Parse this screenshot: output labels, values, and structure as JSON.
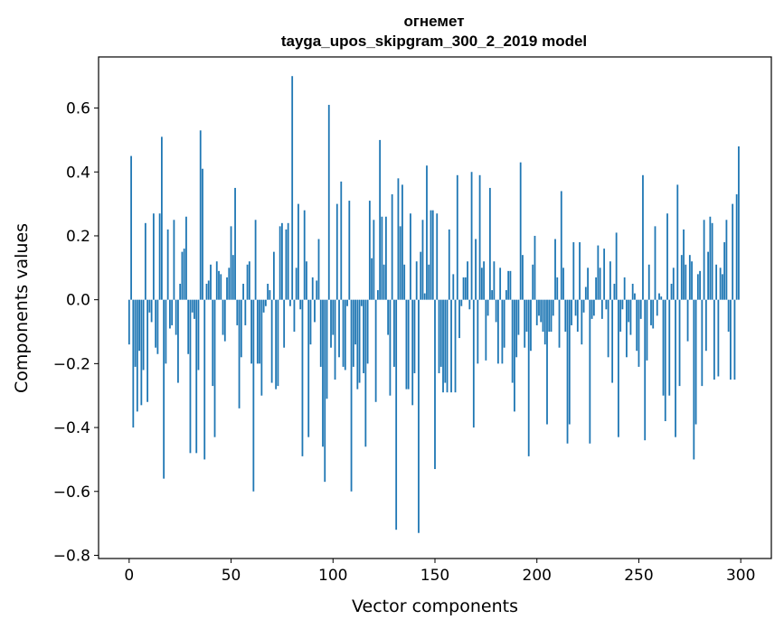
{
  "chart_data": {
    "type": "bar",
    "title": "огнемет",
    "subtitle": "tayga_upos_skipgram_300_2_2019 model",
    "xlabel": "Vector components",
    "ylabel": "Components values",
    "xlim": [
      -15,
      315
    ],
    "ylim": [
      -0.81,
      0.76
    ],
    "xticks": [
      0,
      50,
      100,
      150,
      200,
      250,
      300
    ],
    "yticks": [
      -0.8,
      -0.6,
      -0.4,
      -0.2,
      0.0,
      0.2,
      0.4,
      0.6
    ],
    "ytick_labels": [
      "−0.8",
      "−0.6",
      "−0.4",
      "−0.2",
      "0.0",
      "0.2",
      "0.4",
      "0.6"
    ],
    "bar_color": "#1f77b4",
    "grid": false,
    "x": "0..299",
    "values": [
      -0.14,
      0.45,
      -0.4,
      -0.21,
      -0.35,
      -0.16,
      -0.33,
      -0.22,
      0.24,
      -0.32,
      -0.04,
      -0.07,
      0.27,
      -0.15,
      -0.17,
      0.27,
      0.51,
      -0.56,
      -0.2,
      0.22,
      -0.09,
      -0.08,
      0.25,
      -0.11,
      -0.26,
      0.05,
      0.15,
      0.16,
      0.26,
      -0.17,
      -0.48,
      -0.04,
      -0.06,
      -0.48,
      -0.22,
      0.53,
      0.41,
      -0.5,
      0.05,
      0.06,
      0.11,
      -0.27,
      -0.43,
      0.12,
      0.09,
      0.08,
      -0.11,
      -0.13,
      0.07,
      0.1,
      0.23,
      0.14,
      0.35,
      -0.08,
      -0.34,
      -0.18,
      0.05,
      -0.08,
      0.11,
      0.12,
      -0.2,
      -0.6,
      0.25,
      -0.2,
      -0.2,
      -0.3,
      -0.04,
      -0.02,
      0.05,
      0.03,
      -0.26,
      0.15,
      -0.28,
      -0.27,
      0.23,
      0.24,
      -0.15,
      0.22,
      0.24,
      -0.02,
      0.7,
      -0.1,
      0.1,
      0.3,
      -0.03,
      -0.49,
      0.28,
      0.12,
      -0.43,
      -0.14,
      0.07,
      -0.07,
      0.06,
      0.19,
      -0.21,
      -0.46,
      -0.57,
      -0.31,
      0.61,
      -0.15,
      -0.11,
      -0.25,
      0.3,
      -0.18,
      0.37,
      -0.21,
      -0.22,
      -0.02,
      0.31,
      -0.6,
      -0.21,
      -0.14,
      -0.28,
      -0.26,
      -0.02,
      -0.23,
      -0.46,
      -0.2,
      0.31,
      0.13,
      0.25,
      -0.32,
      0.03,
      0.5,
      0.26,
      0.11,
      0.26,
      -0.11,
      -0.3,
      0.33,
      -0.21,
      -0.72,
      0.38,
      0.23,
      0.36,
      0.11,
      -0.28,
      -0.28,
      0.27,
      -0.33,
      -0.23,
      0.12,
      -0.73,
      0.15,
      0.25,
      0.02,
      0.42,
      0.11,
      0.28,
      0.28,
      -0.53,
      0.27,
      -0.23,
      -0.21,
      -0.29,
      -0.26,
      -0.29,
      0.22,
      -0.29,
      0.08,
      -0.29,
      0.39,
      -0.12,
      -0.02,
      0.07,
      0.07,
      0.12,
      -0.03,
      0.4,
      -0.4,
      0.19,
      -0.2,
      0.39,
      0.1,
      0.12,
      -0.19,
      -0.05,
      0.35,
      0.03,
      0.12,
      -0.07,
      -0.2,
      0.1,
      -0.2,
      -0.15,
      0.03,
      0.09,
      0.09,
      -0.26,
      -0.35,
      -0.18,
      -0.11,
      0.43,
      0.14,
      -0.15,
      -0.1,
      -0.49,
      -0.16,
      0.11,
      0.2,
      -0.08,
      -0.05,
      -0.07,
      -0.1,
      -0.14,
      -0.39,
      -0.1,
      -0.1,
      -0.05,
      0.19,
      0.07,
      -0.15,
      0.34,
      0.1,
      -0.1,
      -0.45,
      -0.39,
      -0.08,
      0.18,
      -0.05,
      -0.1,
      0.18,
      -0.14,
      -0.04,
      0.04,
      0.1,
      -0.45,
      -0.06,
      -0.05,
      0.07,
      0.17,
      0.1,
      -0.06,
      0.16,
      -0.03,
      -0.18,
      0.12,
      -0.26,
      0.05,
      0.21,
      -0.43,
      -0.1,
      -0.03,
      0.07,
      -0.18,
      -0.07,
      -0.11,
      0.05,
      0.02,
      -0.16,
      -0.21,
      -0.06,
      0.39,
      -0.44,
      -0.19,
      0.11,
      -0.08,
      -0.09,
      0.23,
      -0.05,
      0.02,
      0.01,
      -0.3,
      -0.38,
      0.27,
      -0.3,
      0.05,
      0.1,
      -0.43,
      0.36,
      -0.27,
      0.14,
      0.22,
      0.11,
      -0.13,
      0.14,
      0.12,
      -0.5,
      -0.39,
      0.08,
      0.09,
      -0.27,
      0.25,
      -0.16,
      0.15,
      0.26,
      0.24,
      -0.25,
      0.11,
      -0.24,
      0.1,
      0.08,
      0.18,
      0.25,
      -0.1,
      -0.25,
      0.3,
      -0.25,
      0.33,
      0.48
    ]
  }
}
